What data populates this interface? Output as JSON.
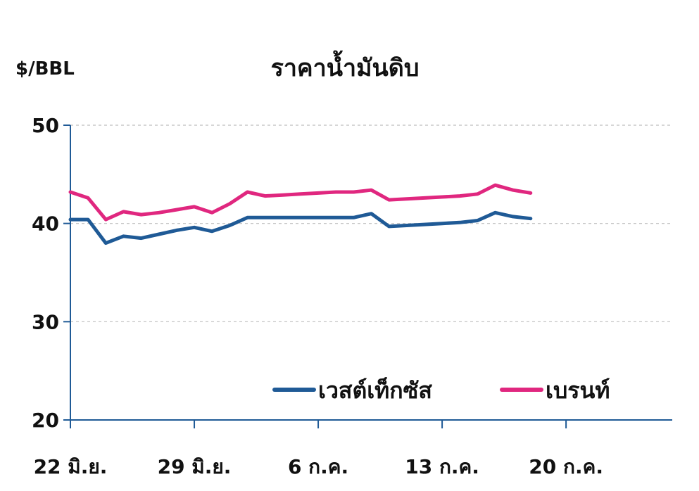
{
  "chart_data": {
    "type": "line",
    "title": "ราคาน้ำมันดิบ",
    "ylabel": "$/BBL",
    "ylim": [
      20,
      50
    ],
    "yticks": [
      20,
      30,
      40,
      50
    ],
    "xlim": [
      "2016-06-22",
      "2016-07-26"
    ],
    "xticks": [
      {
        "date": "2016-06-22",
        "label": "22 มิ.ย."
      },
      {
        "date": "2016-06-29",
        "label": "29 มิ.ย."
      },
      {
        "date": "2016-07-06",
        "label": "6 ก.ค."
      },
      {
        "date": "2016-07-13",
        "label": "13 ก.ค."
      },
      {
        "date": "2016-07-20",
        "label": "20 ก.ค."
      }
    ],
    "grid": true,
    "legend_position": "bottom-right",
    "series": [
      {
        "name": "เวสต์เท็กซัส",
        "color": "#1f5a96",
        "points": [
          [
            "2016-06-22",
            40.4
          ],
          [
            "2016-06-23",
            40.4
          ],
          [
            "2016-06-24",
            38.0
          ],
          [
            "2016-06-25",
            38.7
          ],
          [
            "2016-06-26",
            38.5
          ],
          [
            "2016-06-27",
            38.9
          ],
          [
            "2016-06-28",
            39.3
          ],
          [
            "2016-06-29",
            39.6
          ],
          [
            "2016-06-30",
            39.2
          ],
          [
            "2016-07-01",
            39.8
          ],
          [
            "2016-07-02",
            40.6
          ],
          [
            "2016-07-03",
            40.6
          ],
          [
            "2016-07-04",
            40.6
          ],
          [
            "2016-07-05",
            40.6
          ],
          [
            "2016-07-06",
            40.6
          ],
          [
            "2016-07-07",
            40.6
          ],
          [
            "2016-07-08",
            40.6
          ],
          [
            "2016-07-09",
            41.0
          ],
          [
            "2016-07-10",
            39.7
          ],
          [
            "2016-07-11",
            39.8
          ],
          [
            "2016-07-12",
            39.9
          ],
          [
            "2016-07-13",
            40.0
          ],
          [
            "2016-07-14",
            40.1
          ],
          [
            "2016-07-15",
            40.3
          ],
          [
            "2016-07-16",
            41.1
          ],
          [
            "2016-07-17",
            40.7
          ],
          [
            "2016-07-18",
            40.5
          ]
        ]
      },
      {
        "name": "เบรนท์",
        "color": "#e0277f",
        "points": [
          [
            "2016-06-22",
            43.2
          ],
          [
            "2016-06-23",
            42.6
          ],
          [
            "2016-06-24",
            40.4
          ],
          [
            "2016-06-25",
            41.2
          ],
          [
            "2016-06-26",
            40.9
          ],
          [
            "2016-06-27",
            41.1
          ],
          [
            "2016-06-28",
            41.4
          ],
          [
            "2016-06-29",
            41.7
          ],
          [
            "2016-06-30",
            41.1
          ],
          [
            "2016-07-01",
            42.0
          ],
          [
            "2016-07-02",
            43.2
          ],
          [
            "2016-07-03",
            42.8
          ],
          [
            "2016-07-04",
            42.9
          ],
          [
            "2016-07-05",
            43.0
          ],
          [
            "2016-07-06",
            43.1
          ],
          [
            "2016-07-07",
            43.2
          ],
          [
            "2016-07-08",
            43.2
          ],
          [
            "2016-07-09",
            43.4
          ],
          [
            "2016-07-10",
            42.4
          ],
          [
            "2016-07-11",
            42.5
          ],
          [
            "2016-07-12",
            42.6
          ],
          [
            "2016-07-13",
            42.7
          ],
          [
            "2016-07-14",
            42.8
          ],
          [
            "2016-07-15",
            43.0
          ],
          [
            "2016-07-16",
            43.9
          ],
          [
            "2016-07-17",
            43.4
          ],
          [
            "2016-07-18",
            43.1
          ]
        ]
      }
    ]
  }
}
